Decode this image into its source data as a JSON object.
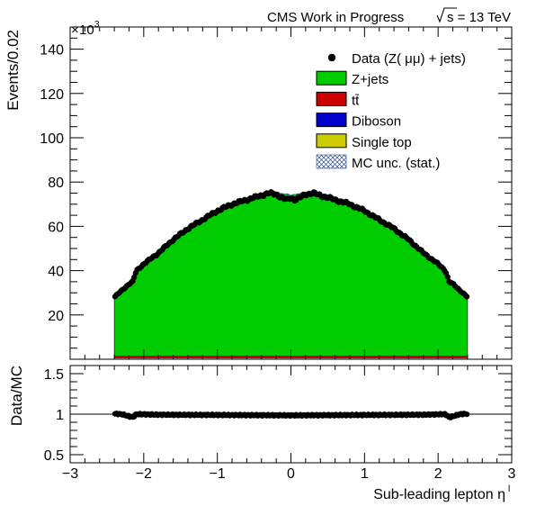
{
  "header": {
    "experiment_label": "CMS Work in Progress",
    "energy_label": "s = 13 TeV"
  },
  "main_plot": {
    "ylabel": "Events/0.02",
    "exponent_label": "10",
    "exponent_power": "3",
    "yticks": [
      "20",
      "40",
      "60",
      "80",
      "100",
      "120",
      "140"
    ]
  },
  "ratio_plot": {
    "ylabel": "Data/MC",
    "yticks": [
      "0.5",
      "1",
      "1.5"
    ]
  },
  "xaxis": {
    "xlabel": "Sub-leading lepton η",
    "xlabel_superscript": "l",
    "xticks": [
      "−3",
      "−2",
      "−1",
      "0",
      "1",
      "2",
      "3"
    ]
  },
  "legend": {
    "placement": "top-right",
    "entries": [
      {
        "key": "data",
        "label": "Data (Z( μμ) + jets)"
      },
      {
        "key": "zjets",
        "label": "Z+jets"
      },
      {
        "key": "ttbar",
        "label": "tt̄"
      },
      {
        "key": "diboson",
        "label": "Diboson"
      },
      {
        "key": "singletop",
        "label": "Single top"
      },
      {
        "key": "mcunc",
        "label": "MC unc. (stat.)"
      }
    ]
  },
  "colors": {
    "zjets": "#00cc00",
    "ttbar": "#cc0000",
    "diboson": "#0000cc",
    "singletop": "#cccc00",
    "data": "#000000"
  },
  "chart_data": [
    {
      "type": "bar",
      "x_range": [
        -3,
        3
      ],
      "ylim": [
        0,
        150000
      ],
      "bin_width": 0.02,
      "eta_range": [
        -2.4,
        2.4
      ],
      "knots": [
        {
          "eta": 0.0,
          "data": 73000,
          "mc": 74000
        },
        {
          "eta": 0.05,
          "data": 72000,
          "mc": 74500
        },
        {
          "eta": 0.1,
          "data": 72500,
          "mc": 74500
        },
        {
          "eta": 0.2,
          "data": 74500,
          "mc": 75500
        },
        {
          "eta": 0.3,
          "data": 75000,
          "mc": 76000
        },
        {
          "eta": 0.4,
          "data": 74000,
          "mc": 75000
        },
        {
          "eta": 0.6,
          "data": 72000,
          "mc": 73000
        },
        {
          "eta": 0.8,
          "data": 70000,
          "mc": 70700
        },
        {
          "eta": 1.0,
          "data": 67000,
          "mc": 67500
        },
        {
          "eta": 1.2,
          "data": 63000,
          "mc": 63500
        },
        {
          "eta": 1.4,
          "data": 59000,
          "mc": 59300
        },
        {
          "eta": 1.6,
          "data": 54000,
          "mc": 54500
        },
        {
          "eta": 1.8,
          "data": 48000,
          "mc": 48300
        },
        {
          "eta": 2.0,
          "data": 43000,
          "mc": 43100
        },
        {
          "eta": 2.1,
          "data": 40000,
          "mc": 40300
        },
        {
          "eta": 2.15,
          "data": 35000,
          "mc": 36500
        },
        {
          "eta": 2.2,
          "data": 34000,
          "mc": 34500
        },
        {
          "eta": 2.3,
          "data": 31000,
          "mc": 31200
        },
        {
          "eta": 2.4,
          "data": 28000,
          "mc": 28000
        }
      ],
      "backgrounds": {
        "ttbar": 700,
        "diboson": 500,
        "singletop": 200
      }
    },
    {
      "type": "scatter",
      "ylim": [
        0.4,
        1.6
      ],
      "reference_line": 1,
      "ratio_knots": [
        {
          "eta": 0.0,
          "ratio": 0.985
        },
        {
          "eta": 1.0,
          "ratio": 0.99
        },
        {
          "eta": 1.8,
          "ratio": 0.993
        },
        {
          "eta": 2.1,
          "ratio": 1.0
        },
        {
          "eta": 2.15,
          "ratio": 0.96
        },
        {
          "eta": 2.3,
          "ratio": 1.0
        },
        {
          "eta": 2.4,
          "ratio": 1.005
        }
      ]
    }
  ]
}
